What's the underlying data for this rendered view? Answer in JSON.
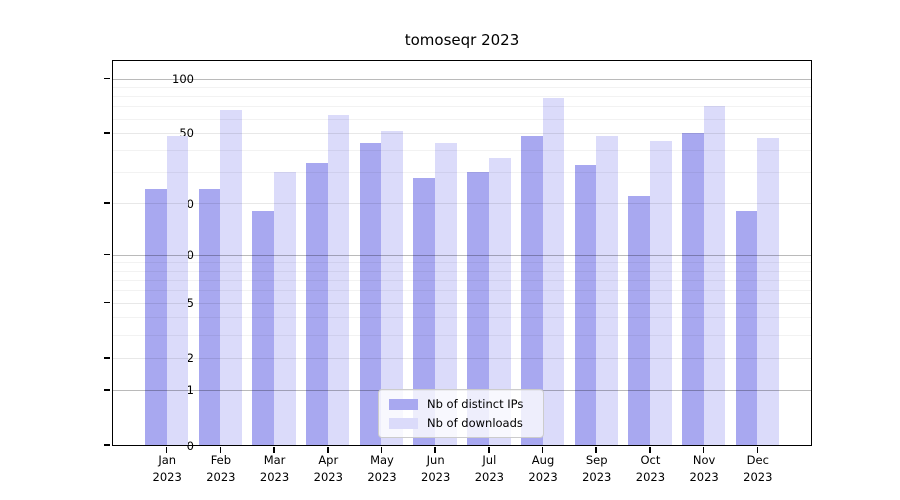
{
  "title": "tomoseqr 2023",
  "chart_data": {
    "type": "bar",
    "title": "tomoseqr 2023",
    "categories": [
      {
        "month": "Jan",
        "year": "2023"
      },
      {
        "month": "Feb",
        "year": "2023"
      },
      {
        "month": "Mar",
        "year": "2023"
      },
      {
        "month": "Apr",
        "year": "2023"
      },
      {
        "month": "May",
        "year": "2023"
      },
      {
        "month": "Jun",
        "year": "2023"
      },
      {
        "month": "Jul",
        "year": "2023"
      },
      {
        "month": "Aug",
        "year": "2023"
      },
      {
        "month": "Sep",
        "year": "2023"
      },
      {
        "month": "Oct",
        "year": "2023"
      },
      {
        "month": "Nov",
        "year": "2023"
      },
      {
        "month": "Dec",
        "year": "2023"
      }
    ],
    "series": [
      {
        "name": "Nb of distinct IPs",
        "color": "#a8a8f0",
        "values": [
          24,
          24,
          18,
          34,
          44,
          28,
          30,
          48,
          33,
          22,
          50,
          18
        ]
      },
      {
        "name": "Nb of downloads",
        "color": "#dbdbfa",
        "values": [
          48,
          67,
          30,
          63,
          51,
          44,
          36,
          78,
          48,
          45,
          70,
          47
        ]
      }
    ],
    "yscale": "log1p",
    "yticks": [
      100,
      50,
      20,
      10,
      5,
      2,
      1,
      0
    ],
    "ylim": [
      0,
      125
    ],
    "grid": true,
    "legend_position": "lower center"
  }
}
